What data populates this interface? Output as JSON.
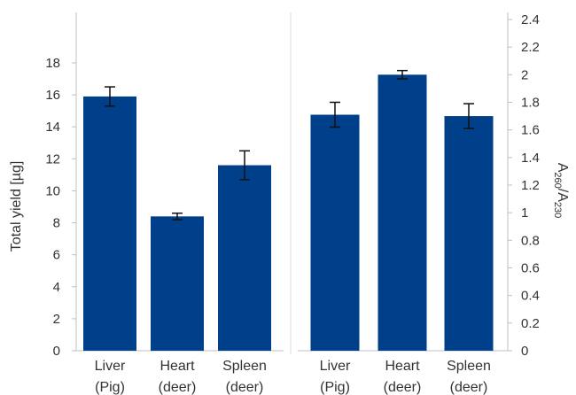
{
  "chart_data": {
    "type": "bar",
    "bar_color": "#003f8a",
    "error_bar_color": "#111111",
    "axis_color": "#bfbfbf",
    "divider_color": "#d9d9d9",
    "grid": false,
    "left_panel": {
      "ylabel": "Total yield [µg]",
      "ylim": [
        0,
        18
      ],
      "yticks": [
        "0",
        "2",
        "4",
        "6",
        "8",
        "10",
        "12",
        "14",
        "16",
        "18"
      ],
      "categories": [
        [
          "Liver",
          "(Pig)"
        ],
        [
          "Heart",
          "(deer)"
        ],
        [
          "Spleen",
          "(deer)"
        ]
      ],
      "values": [
        15.9,
        8.4,
        11.6
      ],
      "errors": [
        0.6,
        0.2,
        0.9
      ]
    },
    "right_panel": {
      "ylabel_main": "A",
      "ylabel_sub1": "260",
      "ylabel_sep": "/A",
      "ylabel_sub2": "230",
      "ylim": [
        0,
        2.4
      ],
      "yticks": [
        "0",
        "0.2",
        "0.4",
        "0.6",
        "0.8",
        "1",
        "1.2",
        "1.4",
        "1.6",
        "1.8",
        "2",
        "2.2",
        "2.4"
      ],
      "categories": [
        [
          "Liver",
          "(Pig)"
        ],
        [
          "Heart",
          "(deer)"
        ],
        [
          "Spleen",
          "(deer)"
        ]
      ],
      "values": [
        1.71,
        2.0,
        1.7
      ],
      "errors": [
        0.09,
        0.03,
        0.09
      ]
    }
  }
}
